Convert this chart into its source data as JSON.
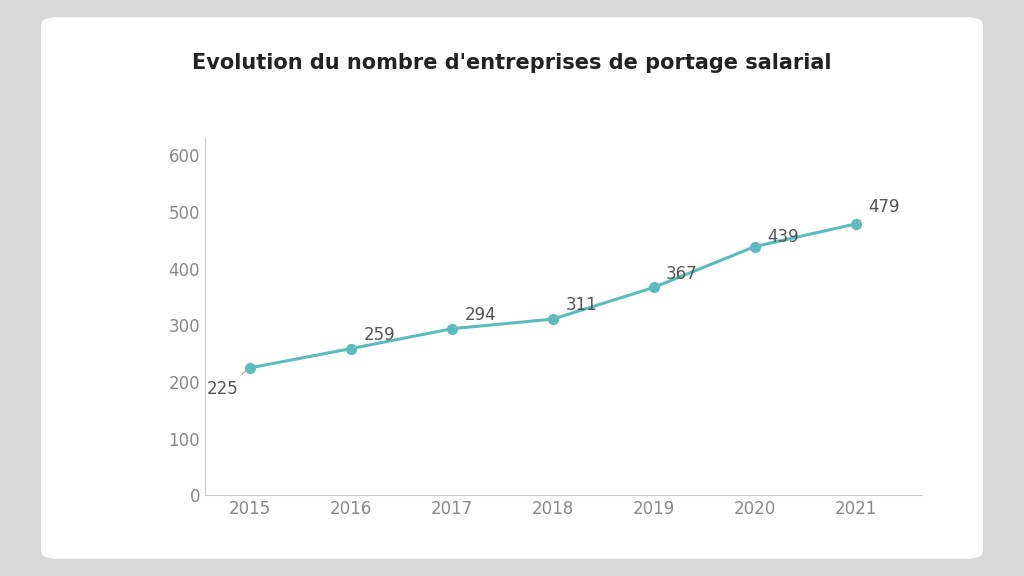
{
  "title": "Evolution du nombre d'entreprises de portage salarial",
  "years": [
    2015,
    2016,
    2017,
    2018,
    2019,
    2020,
    2021
  ],
  "values": [
    225,
    259,
    294,
    311,
    367,
    439,
    479
  ],
  "line_color": "#5bbcbf",
  "marker_color": "#5bbcbf",
  "annotation_color": "#b0b0b0",
  "annotation_text_color": "#555555",
  "ylim": [
    0,
    630
  ],
  "yticks": [
    0,
    100,
    200,
    300,
    400,
    500,
    600
  ],
  "title_fontsize": 15,
  "tick_fontsize": 12,
  "annotation_fontsize": 12,
  "bg_outer": "#d8d8d8",
  "bg_card": "#ffffff",
  "bg_plot": "#ffffff",
  "spine_color": "#cccccc",
  "line_width": 2.2,
  "marker_size": 7,
  "label_positions": [
    [
      2015,
      225,
      -0.12,
      -38,
      "right"
    ],
    [
      2016,
      259,
      0.12,
      24,
      "left"
    ],
    [
      2017,
      294,
      0.12,
      24,
      "left"
    ],
    [
      2018,
      311,
      0.12,
      24,
      "left"
    ],
    [
      2019,
      367,
      0.12,
      24,
      "left"
    ],
    [
      2020,
      439,
      0.12,
      16,
      "left"
    ],
    [
      2021,
      479,
      0.12,
      30,
      "left"
    ]
  ]
}
